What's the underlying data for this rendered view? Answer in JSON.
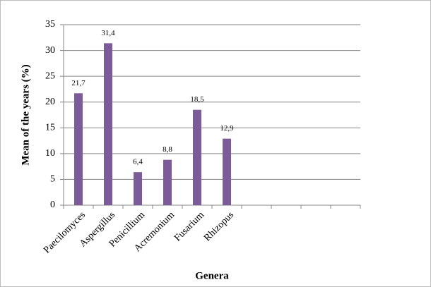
{
  "chart_data": {
    "type": "bar",
    "x_label": "Genera",
    "y_label": "Mean of the years  (%)",
    "categories": [
      "Paecilomyces",
      "Aspergillus",
      "Penicillium",
      "Acremonium",
      "Fusarium",
      "Rhizopus",
      null,
      null,
      null,
      null
    ],
    "values": [
      21.7,
      31.4,
      6.4,
      8.8,
      18.5,
      12.9,
      null,
      null,
      null,
      null
    ],
    "value_labels": [
      "21,7",
      "31,4",
      "6,4",
      "8,8",
      "18,5",
      "12,9",
      null,
      null,
      null,
      null
    ],
    "color": "#7b5c99",
    "ylim": [
      0,
      35
    ],
    "yticks": [
      0,
      5,
      10,
      15,
      20,
      25,
      30,
      35
    ],
    "grid": true
  }
}
